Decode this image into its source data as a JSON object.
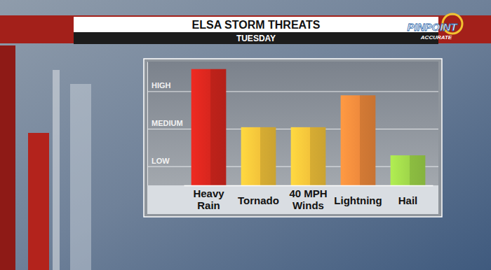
{
  "chart_data": {
    "type": "bar",
    "title": "ELSA STORM THREATS",
    "subtitle": "TUESDAY",
    "categories": [
      "Heavy Rain",
      "Tornado",
      "40 MPH Winds",
      "Lightning",
      "Hail"
    ],
    "values": [
      6.2,
      3.1,
      3.1,
      4.8,
      1.6
    ],
    "colors": [
      "#d7261e",
      "#f3c33a",
      "#f3c33a",
      "#ef8a3c",
      "#9fd64a"
    ],
    "ylim": [
      0,
      6.6
    ],
    "yticks": [
      {
        "value": 1,
        "label": "LOW"
      },
      {
        "value": 3,
        "label": "MEDIUM"
      },
      {
        "value": 5,
        "label": "HIGH"
      }
    ],
    "grid": true
  },
  "logo": {
    "title": "PINPOINT",
    "subtitle": "ACCURATE"
  }
}
